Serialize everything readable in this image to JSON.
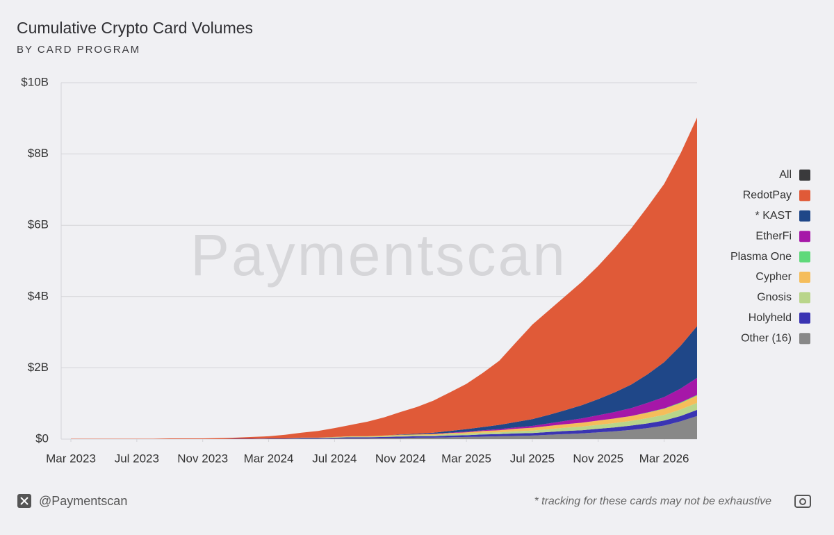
{
  "chart_data": {
    "type": "stacked_area",
    "title": "Cumulative Crypto Card Volumes",
    "subtitle": "BY CARD PROGRAM",
    "watermark": "Paymentscan",
    "handle": "@Paymentscan",
    "footnote": "* tracking for these cards may not be exhaustive",
    "x": [
      "2023-03",
      "2023-04",
      "2023-05",
      "2023-06",
      "2023-07",
      "2023-08",
      "2023-09",
      "2023-10",
      "2023-11",
      "2023-12",
      "2024-01",
      "2024-02",
      "2024-03",
      "2024-04",
      "2024-05",
      "2024-06",
      "2024-07",
      "2024-08",
      "2024-09",
      "2024-10",
      "2024-11",
      "2024-12",
      "2025-01",
      "2025-02",
      "2025-03",
      "2025-04",
      "2025-05",
      "2025-06",
      "2025-07",
      "2025-08",
      "2025-09",
      "2025-10",
      "2025-11",
      "2025-12",
      "2026-01",
      "2026-02",
      "2026-03",
      "2026-04",
      "2026-05"
    ],
    "xlim": [
      "2023-03",
      "2026-05"
    ],
    "xticks": [
      {
        "value": "2023-03",
        "label": "Mar 2023"
      },
      {
        "value": "2023-07",
        "label": "Jul 2023"
      },
      {
        "value": "2023-11",
        "label": "Nov 2023"
      },
      {
        "value": "2024-03",
        "label": "Mar 2024"
      },
      {
        "value": "2024-07",
        "label": "Jul 2024"
      },
      {
        "value": "2024-11",
        "label": "Nov 2024"
      },
      {
        "value": "2025-03",
        "label": "Mar 2025"
      },
      {
        "value": "2025-07",
        "label": "Jul 2025"
      },
      {
        "value": "2025-11",
        "label": "Nov 2025"
      },
      {
        "value": "2026-03",
        "label": "Mar 2026"
      }
    ],
    "ylim": [
      0,
      10
    ],
    "yticks": [
      {
        "value": 0,
        "label": "$0"
      },
      {
        "value": 2,
        "label": "$2B"
      },
      {
        "value": 4,
        "label": "$4B"
      },
      {
        "value": 6,
        "label": "$6B"
      },
      {
        "value": 8,
        "label": "$8B"
      },
      {
        "value": 10,
        "label": "$10B"
      }
    ],
    "grid": true,
    "legend": "right",
    "series": [
      {
        "name": "All",
        "color": "#3a3a3c",
        "values": [
          null,
          null,
          null,
          null,
          null,
          null,
          null,
          null,
          null,
          null,
          null,
          null,
          null,
          null,
          null,
          null,
          null,
          null,
          null,
          null,
          null,
          null,
          null,
          null,
          null,
          null,
          null,
          null,
          null,
          null,
          null,
          null,
          null,
          null,
          null,
          null,
          null,
          null,
          null
        ]
      },
      {
        "name": "RedotPay",
        "color": "#e05a38",
        "values": [
          0.01,
          0.01,
          0.01,
          0.01,
          0.01,
          0.01,
          0.02,
          0.02,
          0.02,
          0.03,
          0.03,
          0.05,
          0.06,
          0.1,
          0.14,
          0.19,
          0.25,
          0.32,
          0.41,
          0.51,
          0.63,
          0.75,
          0.9,
          1.08,
          1.27,
          1.52,
          1.8,
          2.23,
          2.65,
          2.93,
          3.2,
          3.46,
          3.74,
          4.05,
          4.38,
          4.7,
          5.0,
          5.4,
          5.85
        ]
      },
      {
        "name": "* KAST",
        "color": "#1f4788",
        "values": [
          0,
          0,
          0,
          0,
          0,
          0,
          0,
          0,
          0,
          0,
          0,
          0,
          0,
          0,
          0,
          0,
          0,
          0,
          0,
          0,
          0.01,
          0.02,
          0.03,
          0.05,
          0.07,
          0.09,
          0.12,
          0.15,
          0.19,
          0.24,
          0.3,
          0.37,
          0.45,
          0.55,
          0.66,
          0.8,
          0.98,
          1.2,
          1.45
        ]
      },
      {
        "name": "EtherFi",
        "color": "#a617a8",
        "values": [
          0,
          0,
          0,
          0,
          0,
          0,
          0,
          0,
          0,
          0,
          0,
          0,
          0,
          0,
          0,
          0,
          0,
          0,
          0,
          0,
          0,
          0,
          0.01,
          0.01,
          0.02,
          0.02,
          0.03,
          0.04,
          0.05,
          0.07,
          0.09,
          0.12,
          0.15,
          0.18,
          0.22,
          0.27,
          0.32,
          0.39,
          0.48
        ]
      },
      {
        "name": "Plasma One",
        "color": "#5fd97a",
        "values": [
          0,
          0,
          0,
          0,
          0,
          0,
          0,
          0,
          0,
          0,
          0,
          0,
          0,
          0,
          0,
          0,
          0,
          0,
          0,
          0,
          0,
          0,
          0,
          0,
          0,
          0,
          0,
          0,
          0,
          0,
          0,
          0,
          0,
          0,
          0,
          0.01,
          0.01,
          0.02,
          0.02
        ]
      },
      {
        "name": "Cypher",
        "color": "#f5bd5b",
        "values": [
          0,
          0,
          0,
          0,
          0,
          0,
          0,
          0,
          0,
          0,
          0,
          0,
          0,
          0,
          0,
          0,
          0.01,
          0.01,
          0.01,
          0.02,
          0.02,
          0.02,
          0.03,
          0.03,
          0.04,
          0.05,
          0.06,
          0.07,
          0.08,
          0.09,
          0.1,
          0.11,
          0.12,
          0.13,
          0.14,
          0.15,
          0.17,
          0.18,
          0.2
        ]
      },
      {
        "name": "Gnosis",
        "color": "#b9d58a",
        "values": [
          0,
          0,
          0,
          0,
          0,
          0,
          0,
          0,
          0,
          0,
          0,
          0,
          0,
          0,
          0.01,
          0.01,
          0.01,
          0.02,
          0.02,
          0.02,
          0.03,
          0.03,
          0.03,
          0.04,
          0.04,
          0.05,
          0.05,
          0.06,
          0.07,
          0.08,
          0.09,
          0.1,
          0.11,
          0.12,
          0.13,
          0.15,
          0.16,
          0.18,
          0.2
        ]
      },
      {
        "name": "Holyheld",
        "color": "#3a34b3",
        "values": [
          0,
          0,
          0,
          0,
          0,
          0,
          0,
          0,
          0,
          0,
          0.01,
          0.01,
          0.01,
          0.01,
          0.02,
          0.02,
          0.02,
          0.03,
          0.03,
          0.03,
          0.04,
          0.04,
          0.04,
          0.05,
          0.05,
          0.06,
          0.06,
          0.07,
          0.07,
          0.08,
          0.09,
          0.09,
          0.1,
          0.11,
          0.12,
          0.13,
          0.14,
          0.15,
          0.17
        ]
      },
      {
        "name": "Other (16)",
        "color": "#888888",
        "values": [
          0,
          0,
          0,
          0,
          0,
          0,
          0,
          0,
          0,
          0,
          0,
          0,
          0.01,
          0.01,
          0.01,
          0.01,
          0.02,
          0.02,
          0.02,
          0.03,
          0.03,
          0.04,
          0.04,
          0.05,
          0.06,
          0.07,
          0.08,
          0.09,
          0.1,
          0.12,
          0.14,
          0.16,
          0.19,
          0.22,
          0.26,
          0.31,
          0.38,
          0.5,
          0.65
        ]
      }
    ]
  }
}
